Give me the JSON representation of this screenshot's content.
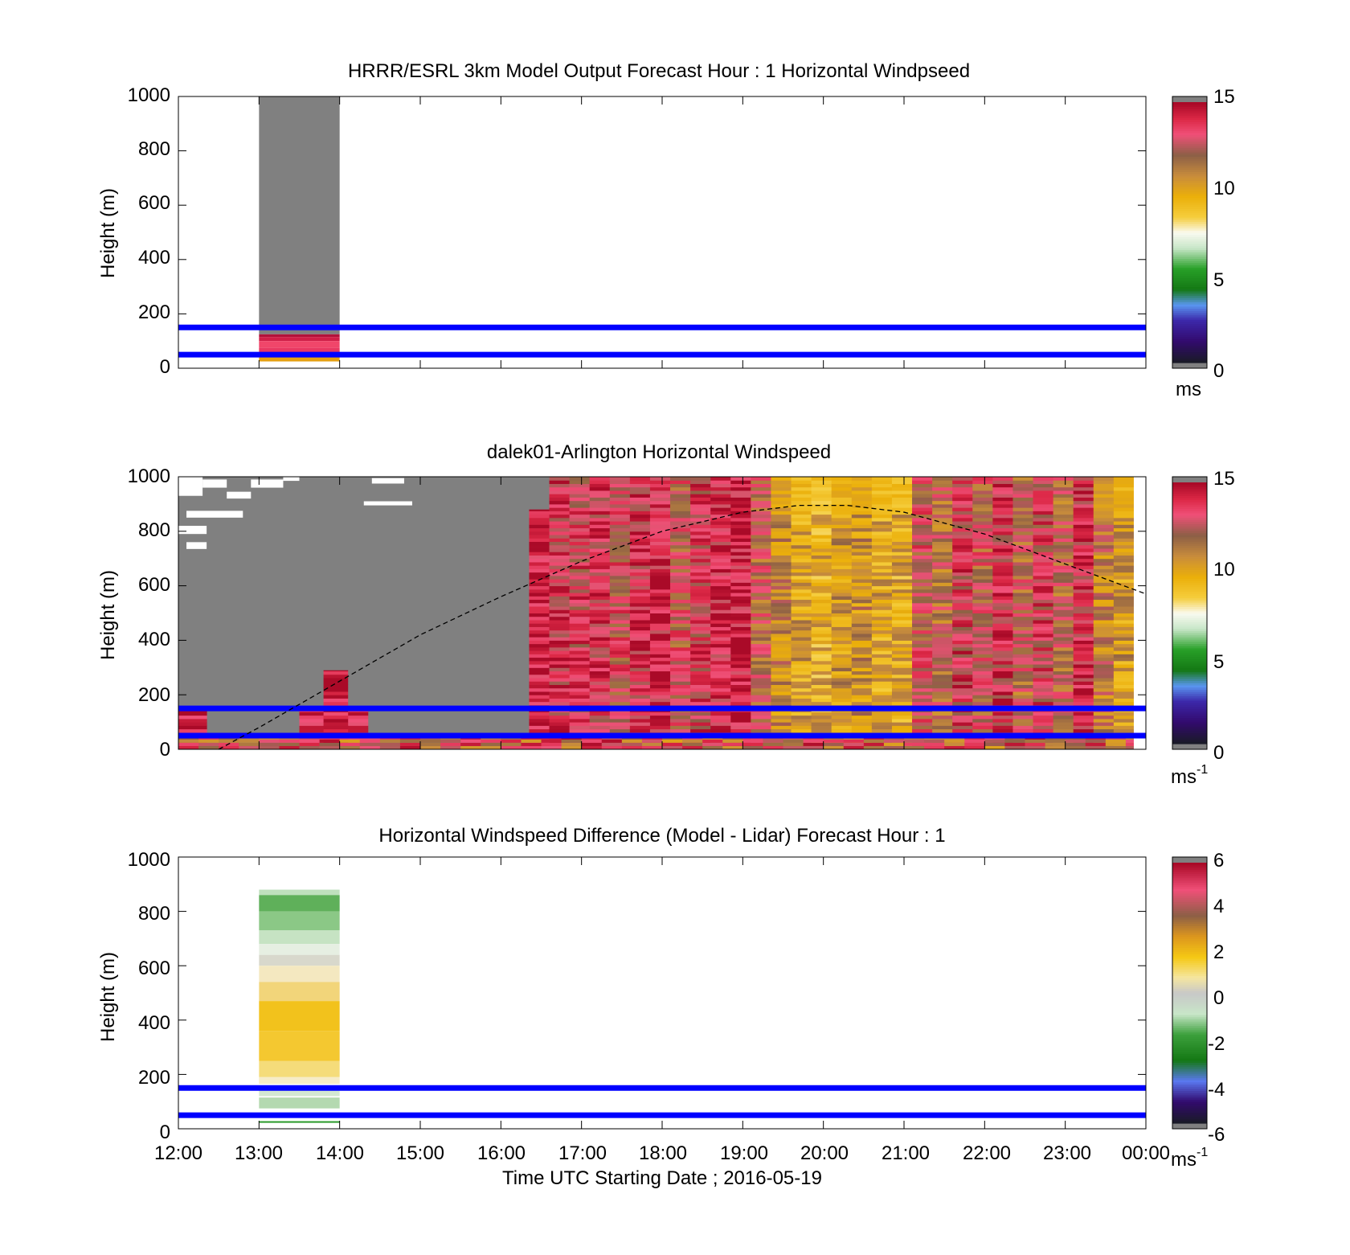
{
  "chart_data": [
    {
      "type": "heatmap",
      "title": "HRRR/ESRL 3km Model Output   Forecast Hour : 1 Horizontal Windpseed",
      "ylabel": "Height (m)",
      "xlabel": "",
      "ylim": [
        0,
        1000
      ],
      "yticks": [
        "0",
        "200",
        "400",
        "600",
        "800",
        "1000"
      ],
      "xlim_hours": [
        12,
        24
      ],
      "colorbar": {
        "ticks": [
          "0",
          "5",
          "10",
          "15"
        ],
        "range": [
          0,
          15
        ],
        "unit": "ms",
        "unit_sup": ""
      },
      "reference_lines_m": [
        50,
        150
      ],
      "blocks": [
        {
          "t0": 13,
          "t1": 14,
          "h0": 150,
          "h1": 1000,
          "value": 0,
          "color": "#808080"
        },
        {
          "t0": 13,
          "t1": 14,
          "h0": 125,
          "h1": 150,
          "value": 0,
          "color": "#808080"
        },
        {
          "t0": 13,
          "t1": 14,
          "h0": 115,
          "h1": 125,
          "value": 14.8,
          "color": "#b2123a"
        },
        {
          "t0": 13,
          "t1": 14,
          "h0": 100,
          "h1": 115,
          "value": 14,
          "color": "#d01f48"
        },
        {
          "t0": 13,
          "t1": 14,
          "h0": 75,
          "h1": 100,
          "value": 13.2,
          "color": "#f0466a"
        },
        {
          "t0": 13,
          "t1": 14,
          "h0": 55,
          "h1": 75,
          "value": 13.6,
          "color": "#e83862"
        },
        {
          "t0": 13,
          "t1": 14,
          "h0": 40,
          "h1": 50,
          "value": 12.5,
          "color": "#c25868"
        },
        {
          "t0": 13,
          "t1": 14,
          "h0": 25,
          "h1": 40,
          "value": 10,
          "color": "#e5a010"
        }
      ]
    },
    {
      "type": "heatmap",
      "title": "dalek01-Arlington  Horizontal Windspeed",
      "ylabel": "Height (m)",
      "xlabel": "",
      "ylim": [
        0,
        1000
      ],
      "yticks": [
        "0",
        "200",
        "400",
        "600",
        "800",
        "1000"
      ],
      "xlim_hours": [
        12,
        24
      ],
      "colorbar": {
        "ticks": [
          "0",
          "5",
          "10",
          "15"
        ],
        "range": [
          0,
          15
        ],
        "unit": "ms",
        "unit_sup": "-1"
      },
      "reference_lines_m": [
        50,
        150
      ],
      "overlay_curve": {
        "style": "dashed",
        "points": [
          [
            12.5,
            0
          ],
          [
            13,
            80
          ],
          [
            14,
            250
          ],
          [
            15,
            420
          ],
          [
            16,
            560
          ],
          [
            17,
            690
          ],
          [
            18,
            800
          ],
          [
            19,
            870
          ],
          [
            19.7,
            895
          ],
          [
            20.3,
            895
          ],
          [
            21,
            870
          ],
          [
            22,
            790
          ],
          [
            23,
            680
          ],
          [
            24,
            570
          ]
        ]
      },
      "time_bins": [
        {
          "t0": 16.35,
          "t1": 16.6,
          "top": 880,
          "value": 14.5
        },
        {
          "t0": 16.6,
          "t1": 16.85,
          "top": 1000,
          "value": 13.8
        },
        {
          "t0": 16.85,
          "t1": 17.1,
          "top": 1000,
          "value": 13.3
        },
        {
          "t0": 17.1,
          "t1": 17.35,
          "top": 1000,
          "value": 13.6
        },
        {
          "t0": 17.35,
          "t1": 17.6,
          "top": 1000,
          "value": 12.9
        },
        {
          "t0": 17.6,
          "t1": 17.85,
          "top": 1000,
          "value": 13.9
        },
        {
          "t0": 17.85,
          "t1": 18.1,
          "top": 1000,
          "value": 14.2
        },
        {
          "t0": 18.1,
          "t1": 18.35,
          "top": 1000,
          "value": 12.6
        },
        {
          "t0": 18.35,
          "t1": 18.6,
          "top": 1000,
          "value": 13.4
        },
        {
          "t0": 18.6,
          "t1": 18.85,
          "top": 1000,
          "value": 14.1
        },
        {
          "t0": 18.85,
          "t1": 19.1,
          "top": 1000,
          "value": 14.4
        },
        {
          "t0": 19.1,
          "t1": 19.35,
          "top": 1000,
          "value": 12.2
        },
        {
          "t0": 19.35,
          "t1": 19.6,
          "top": 1000,
          "value": 11.0
        },
        {
          "t0": 19.6,
          "t1": 19.85,
          "top": 1000,
          "value": 10.1
        },
        {
          "t0": 19.85,
          "t1": 20.1,
          "top": 1000,
          "value": 9.8
        },
        {
          "t0": 20.1,
          "t1": 20.35,
          "top": 1000,
          "value": 10.3
        },
        {
          "t0": 20.35,
          "t1": 20.6,
          "top": 1000,
          "value": 10.8
        },
        {
          "t0": 20.6,
          "t1": 20.85,
          "top": 1000,
          "value": 10.0
        },
        {
          "t0": 20.85,
          "t1": 21.1,
          "top": 1000,
          "value": 9.9
        },
        {
          "t0": 21.1,
          "t1": 21.35,
          "top": 1000,
          "value": 12.7
        },
        {
          "t0": 21.35,
          "t1": 21.6,
          "top": 1000,
          "value": 11.9
        },
        {
          "t0": 21.6,
          "t1": 21.85,
          "top": 1000,
          "value": 13.5
        },
        {
          "t0": 21.85,
          "t1": 22.1,
          "top": 1000,
          "value": 12.4
        },
        {
          "t0": 22.1,
          "t1": 22.35,
          "top": 1000,
          "value": 13.7
        },
        {
          "t0": 22.35,
          "t1": 22.6,
          "top": 1000,
          "value": 12.1
        },
        {
          "t0": 22.6,
          "t1": 22.85,
          "top": 1000,
          "value": 13.3
        },
        {
          "t0": 22.85,
          "t1": 23.1,
          "top": 1000,
          "value": 12.0
        },
        {
          "t0": 23.1,
          "t1": 23.35,
          "top": 1000,
          "value": 13.8
        },
        {
          "t0": 23.35,
          "t1": 23.6,
          "top": 1000,
          "value": 11.3
        },
        {
          "t0": 23.6,
          "t1": 23.85,
          "top": 1000,
          "value": 10.4
        }
      ],
      "low_bins": [
        {
          "t0": 12.0,
          "t1": 12.35,
          "top": 150,
          "value": 14.6
        },
        {
          "t0": 13.5,
          "t1": 14.35,
          "top": 150,
          "value": 14.0
        },
        {
          "t0": 13.8,
          "t1": 14.1,
          "top": 290,
          "value": 14.8
        }
      ],
      "white_gaps": [
        {
          "t0": 12.0,
          "t1": 12.3,
          "h0": 930,
          "h1": 1000
        },
        {
          "t0": 12.3,
          "t1": 12.6,
          "h0": 960,
          "h1": 990
        },
        {
          "t0": 12.6,
          "t1": 12.9,
          "h0": 920,
          "h1": 945
        },
        {
          "t0": 12.9,
          "t1": 13.3,
          "h0": 960,
          "h1": 990
        },
        {
          "t0": 13.3,
          "t1": 13.5,
          "h0": 985,
          "h1": 1000
        },
        {
          "t0": 12.1,
          "t1": 12.8,
          "h0": 850,
          "h1": 875
        },
        {
          "t0": 12.0,
          "t1": 12.35,
          "h0": 790,
          "h1": 820
        },
        {
          "t0": 12.1,
          "t1": 12.35,
          "h0": 735,
          "h1": 760
        },
        {
          "t0": 14.3,
          "t1": 14.9,
          "h0": 895,
          "h1": 910
        },
        {
          "t0": 14.4,
          "t1": 14.8,
          "h0": 975,
          "h1": 995
        }
      ]
    },
    {
      "type": "heatmap",
      "title": "Horizontal Windspeed Difference (Model - Lidar) Forecast Hour : 1",
      "ylabel": "Height (m)",
      "xlabel": "Time UTC  Starting Date ; 2016-05-19",
      "ylim": [
        0,
        1000
      ],
      "yticks": [
        "0",
        "200",
        "400",
        "600",
        "800",
        "1000"
      ],
      "xticks": [
        "12:00",
        "13:00",
        "14:00",
        "15:00",
        "16:00",
        "17:00",
        "18:00",
        "19:00",
        "20:00",
        "21:00",
        "22:00",
        "23:00",
        "00:00"
      ],
      "xlim_hours": [
        12,
        24
      ],
      "colorbar": {
        "ticks": [
          "-6",
          "-4",
          "-2",
          "0",
          "2",
          "4",
          "6"
        ],
        "range": [
          -6,
          6
        ],
        "unit": "ms",
        "unit_sup": "-1"
      },
      "reference_lines_m": [
        50,
        150
      ],
      "blocks": [
        {
          "t0": 13,
          "t1": 14,
          "h0": 860,
          "h1": 880,
          "value": -1.2,
          "color": "#bfe0bd"
        },
        {
          "t0": 13,
          "t1": 14,
          "h0": 800,
          "h1": 860,
          "value": -2.4,
          "color": "#5fb05a"
        },
        {
          "t0": 13,
          "t1": 14,
          "h0": 730,
          "h1": 800,
          "value": -1.8,
          "color": "#8bc886"
        },
        {
          "t0": 13,
          "t1": 14,
          "h0": 680,
          "h1": 730,
          "value": -0.9,
          "color": "#c6e3c3"
        },
        {
          "t0": 13,
          "t1": 14,
          "h0": 640,
          "h1": 680,
          "value": -0.3,
          "color": "#e6efe2"
        },
        {
          "t0": 13,
          "t1": 14,
          "h0": 600,
          "h1": 640,
          "value": 0,
          "color": "#d8d8cc"
        },
        {
          "t0": 13,
          "t1": 14,
          "h0": 540,
          "h1": 600,
          "value": 0.4,
          "color": "#f4e8c0"
        },
        {
          "t0": 13,
          "t1": 14,
          "h0": 470,
          "h1": 540,
          "value": 0.9,
          "color": "#f2d57a"
        },
        {
          "t0": 13,
          "t1": 14,
          "h0": 360,
          "h1": 470,
          "value": 1.5,
          "color": "#f2c21c"
        },
        {
          "t0": 13,
          "t1": 14,
          "h0": 250,
          "h1": 360,
          "value": 1.3,
          "color": "#f4c830"
        },
        {
          "t0": 13,
          "t1": 14,
          "h0": 190,
          "h1": 250,
          "value": 0.8,
          "color": "#f5dc7a"
        },
        {
          "t0": 13,
          "t1": 14,
          "h0": 165,
          "h1": 190,
          "value": 0.3,
          "color": "#f6ecc8"
        },
        {
          "t0": 13,
          "t1": 14,
          "h0": 120,
          "h1": 150,
          "value": -0.6,
          "color": "#d4e8d2"
        },
        {
          "t0": 13,
          "t1": 14,
          "h0": 75,
          "h1": 115,
          "value": -1.0,
          "color": "#b4d9b0"
        },
        {
          "t0": 13,
          "t1": 14,
          "h0": 22,
          "h1": 28,
          "value": -2.8,
          "color": "#2a9a2a"
        }
      ]
    }
  ]
}
